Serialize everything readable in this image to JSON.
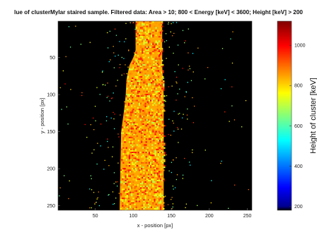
{
  "chart_data": {
    "type": "heatmap",
    "title": "lue of clusterMylar staired sample. Filtered data: Area > 10; 800 < Energy [keV] < 3600;  Height [keV] > 200",
    "xlabel": "x - position [px]",
    "ylabel": "y - position [px]",
    "xlim": [
      1,
      256
    ],
    "ylim": [
      1,
      256
    ],
    "y_axis_direction": "reversed",
    "x_ticks": [
      50,
      100,
      150,
      200,
      250
    ],
    "y_ticks": [
      50,
      100,
      150,
      200,
      250
    ],
    "background_color": "#000000",
    "colormap": "jet",
    "colorbar": {
      "label": "Height of cluster [keV]",
      "range": [
        180,
        1120
      ],
      "ticks": [
        200,
        400,
        600,
        800,
        1000
      ]
    },
    "band": {
      "description_values": "left and right x-edge of the dense cluster band at given y (data px)",
      "y": [
        1,
        40,
        50,
        60,
        80,
        100,
        120,
        150,
        200,
        256
      ],
      "x_left": [
        103,
        103,
        100,
        95,
        91,
        90,
        88,
        84,
        83,
        82
      ],
      "x_right": [
        138,
        138,
        138,
        138,
        139,
        140,
        140,
        140,
        140,
        140
      ],
      "typical_value_keV": 850
    }
  }
}
